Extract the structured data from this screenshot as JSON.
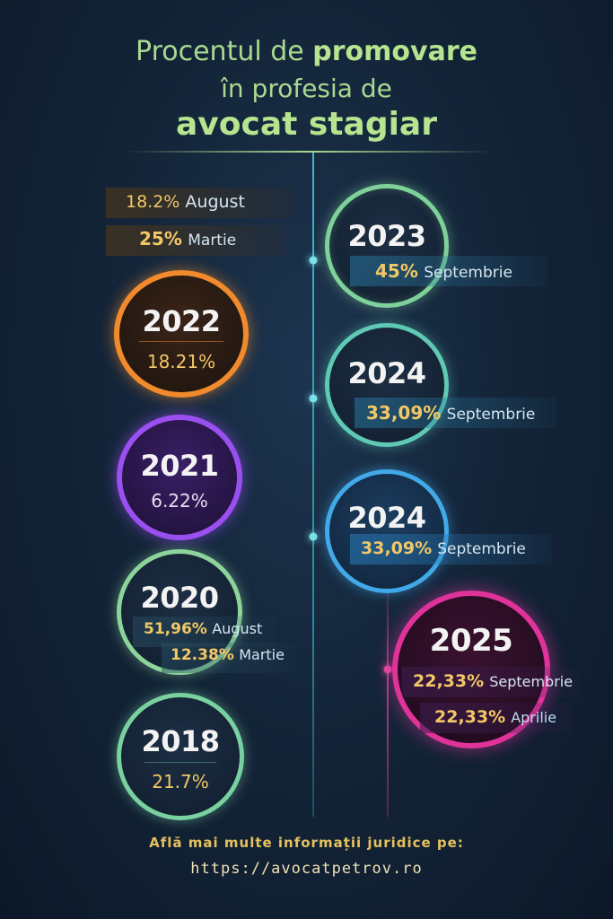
{
  "title": {
    "line1_pre": "Procentul de ",
    "line1_bold": "promovare",
    "line2": "în profesia de",
    "line3": "avocat stagiar"
  },
  "top_left_stats": [
    {
      "pct": "18.2%",
      "label": "August"
    },
    {
      "pct": "25%",
      "label": "Martie"
    }
  ],
  "entries": [
    {
      "year": "2023",
      "stats": [
        {
          "pct": "45%",
          "label": "Septembrie"
        }
      ],
      "ring": "#7fd19a"
    },
    {
      "year": "2022",
      "stats": [
        {
          "pct": "18.21%",
          "label": ""
        }
      ],
      "ring": "#f08a2c"
    },
    {
      "year": "2024",
      "stats": [
        {
          "pct": "33,09%",
          "label": "Septembrie"
        }
      ],
      "ring": "#5fc9b4"
    },
    {
      "year": "2021",
      "stats": [
        {
          "pct": "6.22%",
          "label": ""
        }
      ],
      "ring": "#9a4ff0"
    },
    {
      "year": "2024",
      "stats": [
        {
          "pct": "33,09%",
          "label": "Septembrie"
        }
      ],
      "ring": "#42a9e8"
    },
    {
      "year": "2020",
      "stats": [
        {
          "pct": "51,96%",
          "label": "August"
        },
        {
          "pct": "12.38%",
          "label": "Martie"
        }
      ],
      "ring": "#8dd49a"
    },
    {
      "year": "2025",
      "stats": [
        {
          "pct": "22,33%",
          "label": "Septembrie"
        },
        {
          "pct": "22,33%",
          "label": "Aprilie"
        }
      ],
      "ring": "#e0339a"
    },
    {
      "year": "2018",
      "stats": [
        {
          "pct": "21.7%",
          "label": ""
        }
      ],
      "ring": "#79d1a0"
    }
  ],
  "footer": {
    "line1": "Află mai multe informații juridice pe:",
    "line2": "https://avocatpetrov.ro"
  }
}
